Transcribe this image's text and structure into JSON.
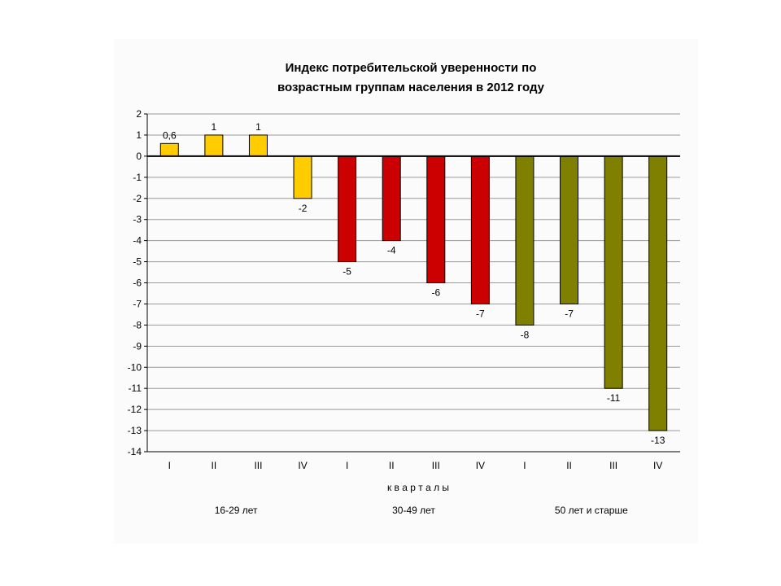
{
  "chart_data": {
    "type": "bar",
    "title": [
      "Индекс потребительской уверенности по",
      "возрастным группам населения в 2012 году"
    ],
    "xlabel": "к в а р т а л ы",
    "ylabel": "",
    "ylim": [
      -14,
      2
    ],
    "yticks": [
      2,
      1,
      0,
      -1,
      -2,
      -3,
      -4,
      -5,
      -6,
      -7,
      -8,
      -9,
      -10,
      -11,
      -12,
      -13,
      -14
    ],
    "grid": true,
    "categories": [
      "I",
      "II",
      "III",
      "IV",
      "I",
      "II",
      "III",
      "IV",
      "I",
      "II",
      "III",
      "IV"
    ],
    "values": [
      0.6,
      1,
      1,
      -2,
      -5,
      -4,
      -6,
      -7,
      -8,
      -7,
      -11,
      -13
    ],
    "data_labels": [
      "0,6",
      "1",
      "1",
      "-2",
      "-5",
      "-4",
      "-6",
      "-7",
      "-8",
      "-7",
      "-11",
      "-13"
    ],
    "groups": [
      {
        "label": "16-29 лет",
        "start": 0,
        "count": 4
      },
      {
        "label": "30-49 лет",
        "start": 4,
        "count": 4
      },
      {
        "label": "50 лет и старше",
        "start": 8,
        "count": 4
      }
    ],
    "bar_colors": [
      "#ffcc00",
      "#ffcc00",
      "#ffcc00",
      "#ffcc00",
      "#cc0000",
      "#cc0000",
      "#cc0000",
      "#cc0000",
      "#808000",
      "#808000",
      "#808000",
      "#808000"
    ]
  }
}
